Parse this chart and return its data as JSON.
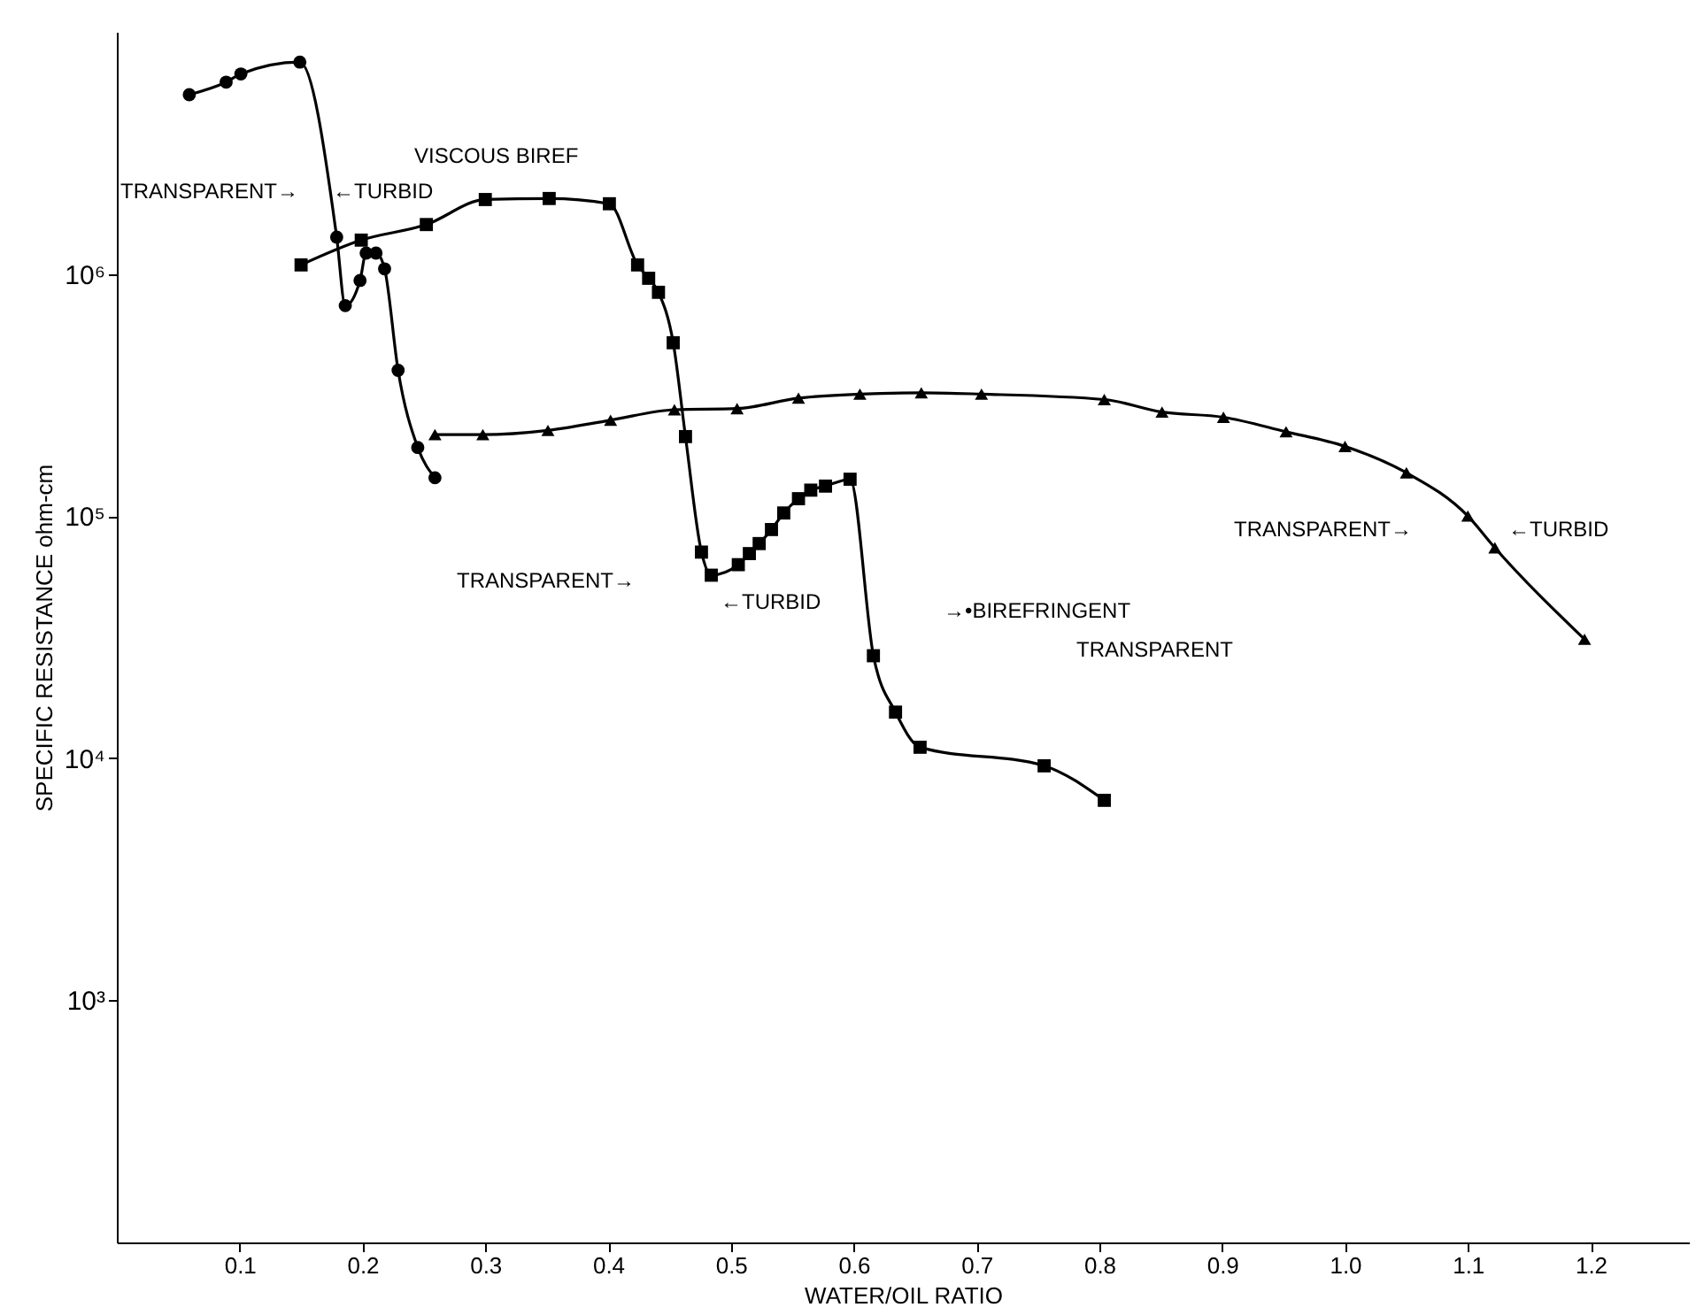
{
  "chart_data": {
    "type": "line",
    "xlabel": "WATER/OIL RATIO",
    "ylabel": "SPECIFIC RESISTANCE  ohm-cm",
    "log": "y",
    "xlim": [
      0,
      1.28
    ],
    "xticks": [
      0.1,
      0.2,
      0.3,
      0.4,
      0.5,
      0.6,
      0.7,
      0.8,
      0.9,
      {
        "value": 1,
        "label": "1.0"
      },
      1.1,
      1.2
    ],
    "ylim": [
      100,
      10000000
    ],
    "yticks": [
      {
        "value": 1000,
        "label": "10³"
      },
      {
        "value": 10000,
        "label": "10⁴"
      },
      {
        "value": 100000,
        "label": "10⁵"
      },
      {
        "value": 1000000,
        "label": "10⁶"
      }
    ],
    "series": [
      {
        "color": "#000000",
        "marker": "circle",
        "x": [
          0.059,
          0.089,
          0.101,
          0.149,
          0.179,
          0.186,
          0.198,
          0.203,
          0.211,
          0.218,
          0.229,
          0.245,
          0.259
        ],
        "values": [
          5500000,
          6200000,
          6700000,
          7500000,
          1420000,
          740000,
          940000,
          1220000,
          1220000,
          1050000,
          400000,
          192000,
          144000
        ]
      },
      {
        "color": "#000000",
        "marker": "square",
        "x": [
          0.15,
          0.199,
          0.252,
          0.3,
          0.352,
          0.401,
          0.424,
          0.433,
          0.441,
          0.453,
          0.463,
          0.476,
          0.484,
          0.506,
          0.515,
          0.523,
          0.533,
          0.543,
          0.555,
          0.565,
          0.577,
          0.597,
          0.616,
          0.634,
          0.654,
          0.755,
          0.804
        ],
        "values": [
          1090000,
          1380000,
          1600000,
          2030000,
          2050000,
          1950000,
          1090000,
          960000,
          840000,
          520000,
          213000,
          71000,
          57000,
          63000,
          70000,
          77000,
          88000,
          103000,
          118000,
          128000,
          133000,
          142000,
          26500,
          15500,
          11100,
          9300,
          6700
        ]
      },
      {
        "color": "#000000",
        "marker": "triangle",
        "x": [
          0.259,
          0.298,
          0.351,
          0.402,
          0.454,
          0.505,
          0.555,
          0.605,
          0.655,
          0.704,
          0.804,
          0.851,
          0.901,
          0.952,
          1.0,
          1.05,
          1.1,
          1.122,
          1.195
        ],
        "values": [
          217000,
          217000,
          226000,
          249000,
          275000,
          278000,
          307000,
          319000,
          323000,
          319000,
          303000,
          269000,
          256000,
          223000,
          194000,
          151000,
          100000,
          74000,
          31000
        ]
      }
    ],
    "annotations": [
      "TRANSPARENT→",
      "←TURBID",
      "VISCOUS BIREF",
      "TRANSPARENT→",
      "←TURBID",
      "→•BIREFRINGENT",
      "TRANSPARENT",
      "TRANSPARENT→",
      "←TURBID"
    ]
  }
}
